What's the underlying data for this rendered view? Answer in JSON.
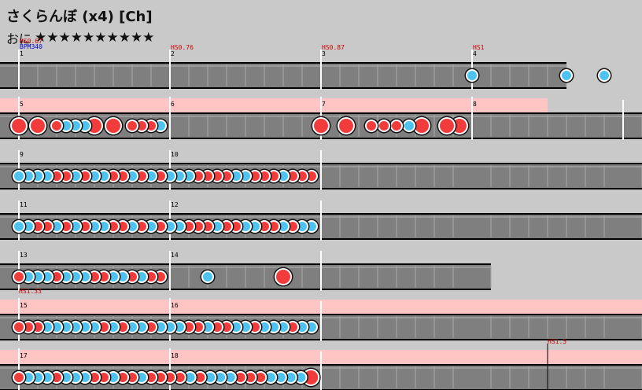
{
  "song": {
    "title": "さくらんぼ (x4) [Ch]",
    "difficulty": "おに",
    "stars": "★★★★★★★★★★",
    "star_count": 10
  },
  "colors": {
    "don": "#f23c3c",
    "ka": "#4fc3f0",
    "gogo": "#ffc4c4",
    "lane": "#7f7f7f",
    "barline": "#ffffff",
    "hs_text": "#cc0000",
    "bpm_text": "#0000cc"
  },
  "rows": [
    {
      "gogo": false,
      "measures": [
        {
          "n": "1",
          "hs": "HS0.67",
          "bpm": "BPM340",
          "notes": ""
        },
        {
          "n": "2",
          "hs": "HS0.76",
          "notes": ""
        },
        {
          "n": "3",
          "hs": "HS0.87",
          "notes": ""
        },
        {
          "n": "4",
          "hs": "HS1",
          "notes": "k0000k0k"
        }
      ]
    },
    {
      "gogo": true,
      "measures": [
        {
          "n": "5",
          "notes": "D0D0dkkkD0D0dddk"
        },
        {
          "n": "6",
          "notes": ""
        },
        {
          "n": "7",
          "notes": "D0D0dddkD0DD"
        },
        {
          "n": "8",
          "notes": ""
        }
      ]
    },
    {
      "gogo": false,
      "measures": [
        {
          "n": "9",
          "notes": "kkkkddkdkkddkdkd"
        },
        {
          "n": "10",
          "notes": "kkkddddkkdddkddd"
        }
      ]
    },
    {
      "gogo": false,
      "measures": [
        {
          "n": "11",
          "notes": "kkddkdkdkkddkdkd"
        },
        {
          "n": "12",
          "notes": "kkdddkddkkddkdkk"
        }
      ]
    },
    {
      "gogo": false,
      "measures": [
        {
          "n": "13",
          "notes": "dkkkdkkkddkkdkdd"
        },
        {
          "n": "14",
          "notes": "0k0D"
        }
      ]
    },
    {
      "gogo": true,
      "gogo_label": "HS1.33",
      "measures": [
        {
          "n": "15",
          "notes": "dddkkkkkkdkdkkdk"
        },
        {
          "n": "16",
          "notes": "kkdd(k)(d)(d)(k)kdkkkdkk"
        }
      ]
    },
    {
      "gogo": true,
      "measures": [
        {
          "n": "17",
          "notes": "dkkkdkkkddkddkdd"
        },
        {
          "n": "18",
          "notes": "ddkdkkkdddkkkkD"
        }
      ],
      "end_label": "HS1.5"
    }
  ]
}
